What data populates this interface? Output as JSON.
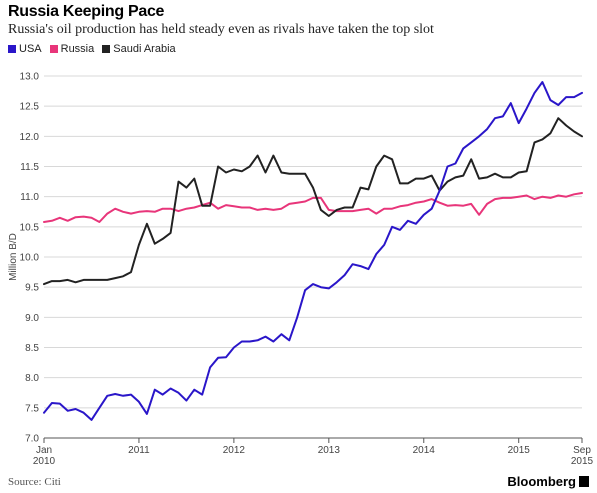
{
  "header": {
    "title": "Russia Keeping Pace",
    "subtitle": "Russia's oil production has held steady even as rivals have taken the top slot"
  },
  "footer": {
    "source": "Source: Citi",
    "brand": "Bloomberg"
  },
  "colors": {
    "usa": "#2a16c9",
    "russia": "#e8357a",
    "saudi": "#222222",
    "grid": "#d8d8d8",
    "axis": "#555555"
  },
  "chart_data": {
    "type": "line",
    "ylabel": "Million B/D",
    "xlabel": "",
    "ylim": [
      7.0,
      13.0
    ],
    "yticks": [
      7.0,
      7.5,
      8.0,
      8.5,
      9.0,
      9.5,
      10.0,
      10.5,
      11.0,
      11.5,
      12.0,
      12.5,
      13.0
    ],
    "xlim": [
      "2010-01",
      "2015-09"
    ],
    "x_tick_labels": [
      {
        "at": "2010-01",
        "line1": "Jan",
        "line2": "2010"
      },
      {
        "at": "2011-01",
        "line1": "2011",
        "line2": ""
      },
      {
        "at": "2012-01",
        "line1": "2012",
        "line2": ""
      },
      {
        "at": "2013-01",
        "line1": "2013",
        "line2": ""
      },
      {
        "at": "2014-01",
        "line1": "2014",
        "line2": ""
      },
      {
        "at": "2015-01",
        "line1": "2015",
        "line2": ""
      },
      {
        "at": "2015-09",
        "line1": "Sep",
        "line2": "2015"
      }
    ],
    "grid": true,
    "legend": "top-left",
    "series": [
      {
        "name": "USA",
        "color": "#2a16c9",
        "values": [
          7.42,
          7.58,
          7.57,
          7.45,
          7.48,
          7.42,
          7.3,
          7.5,
          7.7,
          7.73,
          7.7,
          7.72,
          7.6,
          7.4,
          7.8,
          7.72,
          7.82,
          7.75,
          7.62,
          7.8,
          7.72,
          8.17,
          8.33,
          8.34,
          8.5,
          8.6,
          8.6,
          8.62,
          8.68,
          8.6,
          8.72,
          8.62,
          9.0,
          9.45,
          9.55,
          9.5,
          9.48,
          9.58,
          9.7,
          9.88,
          9.85,
          9.8,
          10.05,
          10.2,
          10.5,
          10.45,
          10.6,
          10.55,
          10.7,
          10.8,
          11.1,
          11.5,
          11.55,
          11.8,
          11.9,
          12.0,
          12.12,
          12.3,
          12.33,
          12.55,
          12.22,
          12.46,
          12.72,
          12.9,
          12.6,
          12.52,
          12.65,
          12.65,
          12.72
        ]
      },
      {
        "name": "Russia",
        "color": "#e8357a",
        "values": [
          10.58,
          10.6,
          10.65,
          10.6,
          10.66,
          10.67,
          10.65,
          10.58,
          10.72,
          10.8,
          10.75,
          10.72,
          10.75,
          10.76,
          10.75,
          10.8,
          10.8,
          10.76,
          10.8,
          10.82,
          10.86,
          10.9,
          10.8,
          10.86,
          10.84,
          10.82,
          10.82,
          10.78,
          10.8,
          10.78,
          10.8,
          10.88,
          10.9,
          10.92,
          10.98,
          10.98,
          10.78,
          10.76,
          10.76,
          10.76,
          10.78,
          10.8,
          10.72,
          10.8,
          10.8,
          10.84,
          10.86,
          10.9,
          10.92,
          10.96,
          10.9,
          10.85,
          10.86,
          10.85,
          10.88,
          10.7,
          10.88,
          10.96,
          10.98,
          10.98,
          11.0,
          11.02,
          10.96,
          11.0,
          10.98,
          11.02,
          11.0,
          11.04,
          11.06
        ]
      },
      {
        "name": "Saudi Arabia",
        "color": "#222222",
        "values": [
          9.55,
          9.6,
          9.6,
          9.62,
          9.58,
          9.62,
          9.62,
          9.62,
          9.62,
          9.65,
          9.68,
          9.75,
          10.2,
          10.55,
          10.22,
          10.3,
          10.4,
          11.25,
          11.15,
          11.3,
          10.85,
          10.85,
          11.5,
          11.4,
          11.45,
          11.42,
          11.5,
          11.68,
          11.4,
          11.68,
          11.4,
          11.38,
          11.38,
          11.38,
          11.15,
          10.78,
          10.68,
          10.78,
          10.82,
          10.82,
          11.15,
          11.12,
          11.5,
          11.68,
          11.62,
          11.22,
          11.22,
          11.3,
          11.3,
          11.35,
          11.1,
          11.25,
          11.32,
          11.35,
          11.62,
          11.3,
          11.32,
          11.38,
          11.32,
          11.32,
          11.4,
          11.42,
          11.9,
          11.95,
          12.05,
          12.3,
          12.18,
          12.08,
          12.0
        ]
      }
    ]
  }
}
